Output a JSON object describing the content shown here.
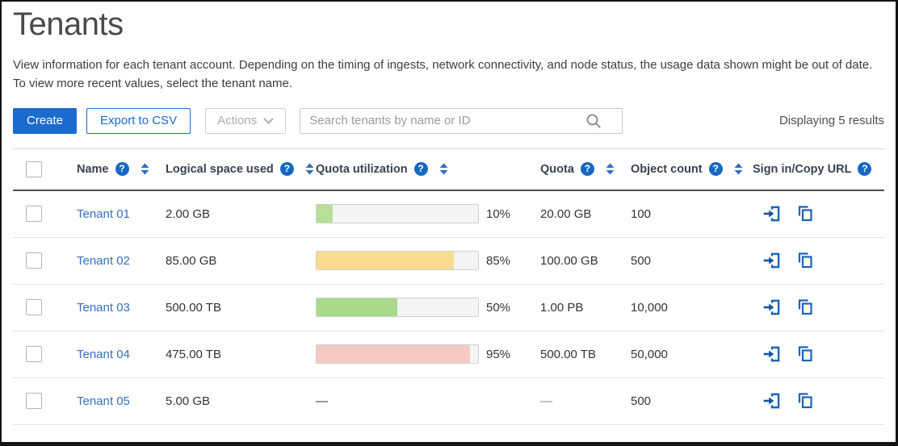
{
  "page": {
    "title": "Tenants",
    "description_line1": "View information for each tenant account. Depending on the timing of ingests, network connectivity, and node status, the usage data shown might be out of date.",
    "description_line2": "To view more recent values, select the tenant name.",
    "results_text": "Displaying 5 results"
  },
  "toolbar": {
    "create_label": "Create",
    "export_label": "Export to CSV",
    "actions_label": "Actions",
    "search_placeholder": "Search tenants by name or ID"
  },
  "colors": {
    "primary_blue": "#1c6bce",
    "link_blue": "#3671bd",
    "icon_blue": "#1b64bb",
    "help_badge_blue": "#1668c2",
    "sort_arrow_blue": "#2f6fc4",
    "bar_green": "#afdd90",
    "bar_yellow": "#f9dc90",
    "bar_red": "#f6c9c4"
  },
  "table": {
    "columns": [
      {
        "label": "Name",
        "help": true,
        "sortable": true
      },
      {
        "label": "Logical space used",
        "help": true,
        "sortable": true
      },
      {
        "label": "Quota utilization",
        "help": true,
        "sortable": true
      },
      {
        "label": "Quota",
        "help": true,
        "sortable": true
      },
      {
        "label": "Object count",
        "help": true,
        "sortable": true
      },
      {
        "label": "Sign in/Copy URL",
        "help": true,
        "sortable": false
      }
    ],
    "rows": [
      {
        "name": "Tenant 01",
        "logical_space": "2.00 GB",
        "utilization_pct": 10,
        "utilization_label": "10%",
        "bar_color": "#b5e096",
        "quota": "20.00 GB",
        "object_count": "100"
      },
      {
        "name": "Tenant 02",
        "logical_space": "85.00 GB",
        "utilization_pct": 85,
        "utilization_label": "85%",
        "bar_color": "#f9dc90",
        "quota": "100.00 GB",
        "object_count": "500"
      },
      {
        "name": "Tenant 03",
        "logical_space": "500.00 TB",
        "utilization_pct": 50,
        "utilization_label": "50%",
        "bar_color": "#a9d98a",
        "quota": "1.00 PB",
        "object_count": "10,000"
      },
      {
        "name": "Tenant 04",
        "logical_space": "475.00 TB",
        "utilization_pct": 95,
        "utilization_label": "95%",
        "bar_color": "#f6c9c4",
        "quota": "500.00 TB",
        "object_count": "50,000"
      },
      {
        "name": "Tenant 05",
        "logical_space": "5.00 GB",
        "utilization_pct": null,
        "utilization_label": "—",
        "bar_color": null,
        "quota": "—",
        "object_count": "500"
      }
    ]
  }
}
